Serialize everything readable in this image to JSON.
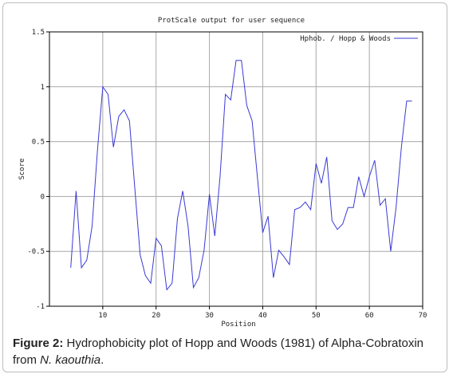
{
  "chart_data": {
    "type": "line",
    "title": "ProtScale output for user sequence",
    "xlabel": "Position",
    "ylabel": "Score",
    "xlim": [
      0,
      70
    ],
    "ylim": [
      -1,
      1.5
    ],
    "xticks": [
      "10",
      "20",
      "30",
      "40",
      "50",
      "60",
      "70"
    ],
    "yticks": [
      "-1",
      "-0.5",
      "0",
      "0.5",
      "1",
      "1.5"
    ],
    "grid": true,
    "legend_position": "top-right",
    "series_color": "#3a3ad6",
    "series": [
      {
        "name": "Hphob. / Hopp & Woods",
        "x": [
          4,
          5,
          6,
          7,
          8,
          9,
          10,
          11,
          12,
          13,
          14,
          15,
          16,
          17,
          18,
          19,
          20,
          21,
          22,
          23,
          24,
          25,
          26,
          27,
          28,
          29,
          30,
          31,
          32,
          33,
          34,
          35,
          36,
          37,
          38,
          39,
          40,
          41,
          42,
          43,
          44,
          45,
          46,
          47,
          48,
          49,
          50,
          51,
          52,
          53,
          54,
          55,
          56,
          57,
          58,
          59,
          60,
          61,
          62,
          63,
          64,
          65,
          66,
          67,
          68
        ],
        "values": [
          -0.65,
          0.05,
          -0.65,
          -0.58,
          -0.27,
          0.42,
          1.0,
          0.93,
          0.45,
          0.73,
          0.79,
          0.69,
          0.08,
          -0.53,
          -0.72,
          -0.79,
          -0.38,
          -0.45,
          -0.85,
          -0.79,
          -0.2,
          0.05,
          -0.27,
          -0.83,
          -0.74,
          -0.49,
          0.02,
          -0.36,
          0.18,
          0.93,
          0.88,
          1.24,
          1.24,
          0.83,
          0.69,
          0.18,
          -0.33,
          -0.18,
          -0.74,
          -0.49,
          -0.55,
          -0.62,
          -0.12,
          -0.1,
          -0.05,
          -0.12,
          0.3,
          0.12,
          0.36,
          -0.22,
          -0.3,
          -0.25,
          -0.1,
          -0.1,
          0.18,
          0.0,
          0.18,
          0.33,
          -0.08,
          -0.02,
          -0.5,
          -0.1,
          0.45,
          0.87,
          0.87
        ]
      }
    ]
  },
  "caption": {
    "label": "Figure 2:",
    "text": " Hydrophobicity plot of Hopp and Woods (1981) of Alpha-Cobratoxin from ",
    "species": "N. kaouthia",
    "end": "."
  }
}
